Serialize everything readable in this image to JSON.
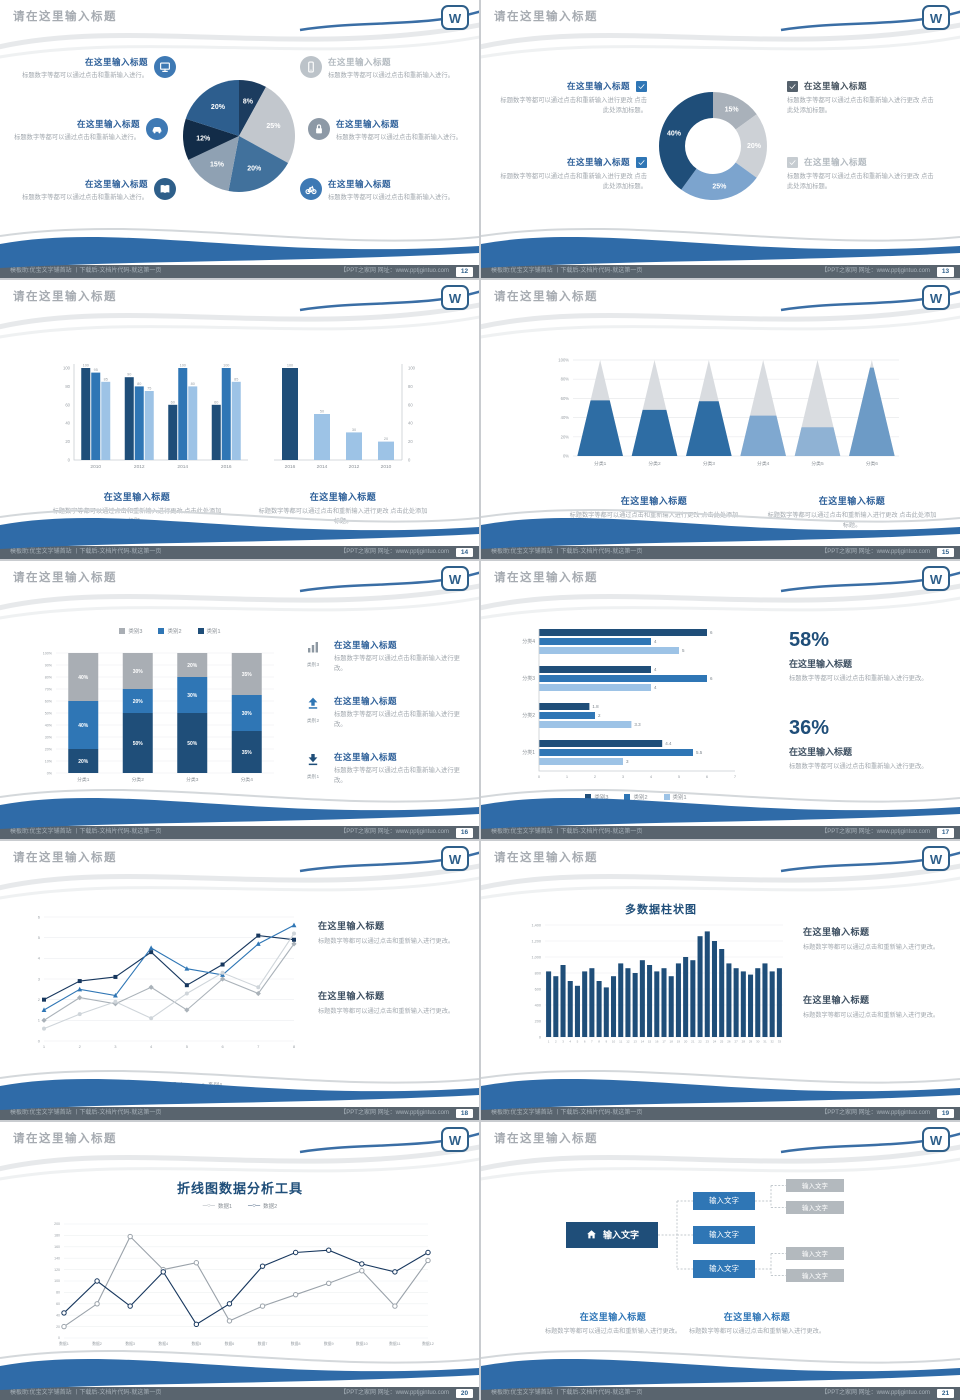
{
  "common": {
    "slide_title": "请在这里输入标题",
    "footer_left": "模板助:优宝文字铺首站 丨下载后-文档片代码-就这第一页",
    "footer_right": "【PPT之家网 网址：www.pptjgintuo.com"
  },
  "slides": [
    {
      "page": "12",
      "items": [
        {
          "icon": "monitor-icon",
          "icon_bg": "#3e79b4",
          "heading": "在这里输入标题",
          "heading_color": "#2e6099",
          "desc": "标题数字等都可以通过点击和重新输入进行。"
        },
        {
          "icon": "car-icon",
          "icon_bg": "#3e79b4",
          "heading": "在这里输入标题",
          "heading_color": "#2e6099",
          "desc": "标题数字等都可以通过点击和重新输入进行。"
        },
        {
          "icon": "book-icon",
          "icon_bg": "#2e5f8a",
          "heading": "在这里输入标题",
          "heading_color": "#2e6099",
          "desc": "标题数字等都可以通过点击和重新输入进行。"
        },
        {
          "icon": "phone-icon",
          "icon_bg": "#bcc3c9",
          "heading": "在这里输入标题",
          "heading_color": "#b3bac0",
          "desc": "标题数字等都可以通过点击和重新输入进行。"
        },
        {
          "icon": "lock-icon",
          "icon_bg": "#8d99a6",
          "heading": "在这里输入标题",
          "heading_color": "#2e6099",
          "desc": "标题数字等都可以通过点击和重新输入进行。"
        },
        {
          "icon": "bike-icon",
          "icon_bg": "#3e79b4",
          "heading": "在这里输入标题",
          "heading_color": "#2e6099",
          "desc": "标题数字等都可以通过点击和重新输入进行。"
        }
      ]
    },
    {
      "page": "13",
      "items": [
        {
          "side": "left",
          "check_bg": "#2f76b5",
          "heading": "在这里输入标题",
          "heading_color": "#2e6099",
          "desc": "标题数字等都可以通过点击和重新输入进行更改 点击此处添加标题。"
        },
        {
          "side": "left",
          "check_bg": "#2f76b5",
          "heading": "在这里输入标题",
          "heading_color": "#2e6099",
          "desc": "标题数字等都可以通过点击和重新输入进行更改 点击此处添加标题。"
        },
        {
          "side": "right",
          "check_bg": "#55616c",
          "heading": "在这里输入标题",
          "heading_color": "#45525e",
          "desc": "标题数字等都可以通过点击和重新输入进行更改 点击此处添加标题。"
        },
        {
          "side": "right",
          "check_bg": "#c6ccd1",
          "heading": "在这里输入标题",
          "heading_color": "#b3bac0",
          "desc": "标题数字等都可以通过点击和重新输入进行更改 点击此处添加标题。"
        }
      ]
    },
    {
      "page": "14",
      "blocks": [
        {
          "heading": "在这里输入标题",
          "desc": "标题数字等都可以通过点击和重新输入进行更改 点击此处添加标题。"
        },
        {
          "heading": "在这里输入标题",
          "desc": "标题数字等都可以通过点击和重新输入进行更改 点击此处添加标题。"
        }
      ]
    },
    {
      "page": "15",
      "blocks": [
        {
          "heading": "在这里输入标题",
          "desc": "标题数字等都可以通过点击和重新输入进行更改 点击此处添加标题。"
        },
        {
          "heading": "在这里输入标题",
          "desc": "标题数字等都可以通过点击和重新输入进行更改 点击此处添加标题。"
        }
      ]
    },
    {
      "page": "16",
      "legend": [
        {
          "label": "类别3",
          "color": "#a9aeb4"
        },
        {
          "label": "类别2",
          "color": "#2f76b5"
        },
        {
          "label": "类别1",
          "color": "#1f4e79"
        }
      ],
      "items": [
        {
          "icon": "bar-chart-icon",
          "icon_color": "#8d98a2",
          "label": "类别3",
          "heading": "在这里输入标题",
          "desc": "标题数字等都可以通过点击和重新输入进行更改。"
        },
        {
          "icon": "arrow-up-icon",
          "icon_color": "#2f76b5",
          "label": "类别2",
          "heading": "在这里输入标题",
          "desc": "标题数字等都可以通过点击和重新输入进行更改。"
        },
        {
          "icon": "arrow-down-icon",
          "icon_color": "#1f4e79",
          "label": "类别1",
          "heading": "在这里输入标题",
          "desc": "标题数字等都可以通过点击和重新输入进行更改。"
        }
      ]
    },
    {
      "page": "17",
      "stats": [
        {
          "value": "58%",
          "heading": "在这里输入标题",
          "desc": "标题数字等都可以通过点击和重新输入进行更改。"
        },
        {
          "value": "36%",
          "heading": "在这里输入标题",
          "desc": "标题数字等都可以通过点击和重新输入进行更改。"
        }
      ]
    },
    {
      "page": "18",
      "blocks": [
        {
          "heading": "在这里输入标题",
          "desc": "标题数字等都可以通过点击和重新输入进行更改。"
        },
        {
          "heading": "在这里输入标题",
          "desc": "标题数字等都可以通过点击和重新输入进行更改。"
        }
      ]
    },
    {
      "page": "19",
      "blocks": [
        {
          "heading": "在这里输入标题",
          "desc": "标题数字等都可以通过点击和重新输入进行更改。"
        },
        {
          "heading": "在这里输入标题",
          "desc": "标题数字等都可以通过点击和重新输入进行更改。"
        }
      ]
    },
    {
      "page": "20"
    },
    {
      "page": "21",
      "flow": {
        "root": "输入文字",
        "children": [
          "输入文字",
          "输入文字",
          "输入文字"
        ],
        "leaves": [
          "输入文字",
          "输入文字",
          "输入文字",
          "输入文字"
        ]
      },
      "blocks": [
        {
          "heading": "在这里输入标题",
          "desc": "标题数字等都可以通过点击和重新输入进行更改。"
        },
        {
          "heading": "在这里输入标题",
          "desc": "标题数字等都可以通过点击和重新输入进行更改。"
        }
      ]
    }
  ],
  "chart_data": [
    {
      "id": "pie-s12",
      "slide_page": "12",
      "type": "pie",
      "labels": [
        "8%",
        "25%",
        "20%",
        "15%",
        "12%",
        "20%"
      ],
      "values": [
        8,
        25,
        20,
        15,
        12,
        20
      ],
      "colors": [
        "#1c3c5f",
        "#c2c7cd",
        "#41719c",
        "#8fa1b3",
        "#122c48",
        "#2d5e8e"
      ]
    },
    {
      "id": "donut-s13",
      "slide_page": "13",
      "type": "pie",
      "inner_ratio": 0.52,
      "labels": [
        "15%",
        "20%",
        "25%",
        "40%"
      ],
      "values": [
        15,
        20,
        25,
        40
      ],
      "colors": [
        "#a9b1ba",
        "#cdd1d6",
        "#7ca4ce",
        "#1f4e79"
      ]
    },
    {
      "id": "bars-s14-left",
      "slide_page": "14",
      "type": "bar",
      "categories": [
        "2010",
        "2012",
        "2014",
        "2016"
      ],
      "series": [
        {
          "name": "系列1",
          "color": "#1f4e79",
          "values": [
            100,
            90,
            60,
            60
          ]
        },
        {
          "name": "系列2",
          "color": "#2f76b5",
          "values": [
            95,
            80,
            100,
            100
          ]
        },
        {
          "name": "系列3",
          "color": "#9dc3e6",
          "values": [
            85,
            75,
            80,
            85
          ]
        }
      ],
      "ylim": [
        0,
        100
      ],
      "yticks": [
        0,
        20,
        40,
        60,
        80,
        100
      ]
    },
    {
      "id": "bars-s14-right",
      "slide_page": "14",
      "type": "bar",
      "axis_side": "right",
      "categories": [
        "2016",
        "2014",
        "2012",
        "2010"
      ],
      "values": [
        100,
        50,
        30,
        20
      ],
      "colors": [
        "#1f4e79",
        "#9dc3e6",
        "#9dc3e6",
        "#9dc3e6"
      ],
      "ylim": [
        0,
        100
      ],
      "yticks": [
        0,
        20,
        40,
        60,
        80,
        100
      ]
    },
    {
      "id": "pyramid-s15",
      "slide_page": "15",
      "type": "bar",
      "variant": "pyramid",
      "categories": [
        "分类1",
        "分类2",
        "分类3",
        "分类4",
        "分类5",
        "分类6"
      ],
      "values": [
        58,
        48,
        57,
        42,
        30,
        92
      ],
      "colors": [
        "#2e6da4",
        "#2e6da4",
        "#2e6da4",
        "#7fa8d0",
        "#8fb2d4",
        "#6d9bc6"
      ],
      "ylim": [
        0,
        100
      ],
      "ytick_labels": [
        "0%",
        "20%",
        "40%",
        "60%",
        "80%",
        "100%"
      ]
    },
    {
      "id": "stack-s16",
      "slide_page": "16",
      "type": "bar",
      "variant": "stacked-percent",
      "categories": [
        "分类1",
        "分类2",
        "分类3",
        "分类4"
      ],
      "series": [
        {
          "name": "类别1",
          "color": "#1f4e79",
          "values": [
            20,
            50,
            50,
            35
          ]
        },
        {
          "name": "类别2",
          "color": "#2f76b5",
          "values": [
            40,
            20,
            30,
            30
          ]
        },
        {
          "name": "类别3",
          "color": "#a9aeb4",
          "values": [
            40,
            30,
            20,
            35
          ]
        }
      ],
      "ylim": [
        0,
        100
      ]
    },
    {
      "id": "hbar-s17",
      "slide_page": "17",
      "type": "bar",
      "variant": "horizontal",
      "categories": [
        "分类1",
        "分类2",
        "分类3",
        "分类4"
      ],
      "series": [
        {
          "name": "类别3",
          "color": "#1f4e79",
          "values": [
            4.4,
            1.8,
            4,
            6
          ]
        },
        {
          "name": "类别2",
          "color": "#2f76b5",
          "values": [
            5.5,
            2,
            6,
            4
          ]
        },
        {
          "name": "类别1",
          "color": "#9dc3e6",
          "values": [
            3,
            3.3,
            4,
            5
          ]
        }
      ],
      "xlim": [
        0,
        7
      ],
      "xticks": [
        0,
        1,
        2,
        3,
        4,
        5,
        6,
        7
      ]
    },
    {
      "id": "line-s18",
      "slide_page": "18",
      "type": "line",
      "x": [
        1,
        2,
        3,
        4,
        5,
        6,
        7,
        8
      ],
      "series": [
        {
          "name": "系列1",
          "color": "#aab2b9",
          "marker": "diamond",
          "values": [
            1.0,
            2.1,
            1.8,
            2.6,
            1.5,
            3.0,
            2.3,
            4.7
          ]
        },
        {
          "name": "系列2",
          "color": "#17375e",
          "marker": "square",
          "values": [
            2.0,
            2.9,
            3.1,
            4.3,
            2.7,
            3.7,
            5.1,
            4.9
          ]
        },
        {
          "name": "系列3",
          "color": "#2f76b5",
          "marker": "triangle",
          "values": [
            1.5,
            2.5,
            2.2,
            4.5,
            3.5,
            3.2,
            4.7,
            5.6
          ]
        },
        {
          "name": "系列4",
          "color": "#cfd5da",
          "marker": "circle",
          "values": [
            0.6,
            1.3,
            1.9,
            1.1,
            2.3,
            3.3,
            2.6,
            5.2
          ]
        }
      ],
      "ylim": [
        0,
        6
      ],
      "yticks": [
        0,
        1,
        2,
        3,
        4,
        5,
        6
      ]
    },
    {
      "id": "cols-s19",
      "slide_page": "19",
      "type": "bar",
      "title": "多数据柱状图",
      "color": "#1f4e79",
      "categories": [
        "1",
        "2",
        "3",
        "4",
        "5",
        "6",
        "7",
        "8",
        "9",
        "10",
        "11",
        "12",
        "13",
        "14",
        "15",
        "16",
        "17",
        "18",
        "19",
        "20",
        "21",
        "22",
        "23",
        "24",
        "25",
        "26",
        "27",
        "28",
        "29",
        "30",
        "31",
        "32",
        "33"
      ],
      "values": [
        820,
        760,
        900,
        700,
        640,
        820,
        860,
        700,
        620,
        760,
        920,
        860,
        800,
        960,
        900,
        820,
        860,
        760,
        920,
        1000,
        960,
        1260,
        1320,
        1200,
        1100,
        920,
        860,
        820,
        780,
        860,
        920,
        820,
        860
      ],
      "ylim": [
        0,
        1400
      ],
      "ytick_labels": [
        "0",
        "200",
        "400",
        "600",
        "800",
        "1,000",
        "1,200",
        "1,400"
      ]
    },
    {
      "id": "line-s20",
      "slide_page": "20",
      "type": "line",
      "title": "折线图数据分析工具",
      "categories": [
        "数据1",
        "数据2",
        "数据3",
        "数据4",
        "数据5",
        "数据6",
        "数据7",
        "数据8",
        "数据9",
        "数据10",
        "数据11",
        "数据12"
      ],
      "series": [
        {
          "name": "数据1",
          "color": "#9aa2aa",
          "values": [
            20,
            60,
            178,
            120,
            132,
            30,
            56,
            76,
            96,
            118,
            56,
            136
          ]
        },
        {
          "name": "数据2",
          "color": "#17375e",
          "values": [
            44,
            100,
            56,
            116,
            24,
            60,
            126,
            150,
            154,
            130,
            116,
            150
          ]
        }
      ],
      "ylim": [
        0,
        200
      ],
      "yticks": [
        0,
        20,
        40,
        60,
        80,
        100,
        120,
        140,
        160,
        180,
        200
      ]
    }
  ]
}
